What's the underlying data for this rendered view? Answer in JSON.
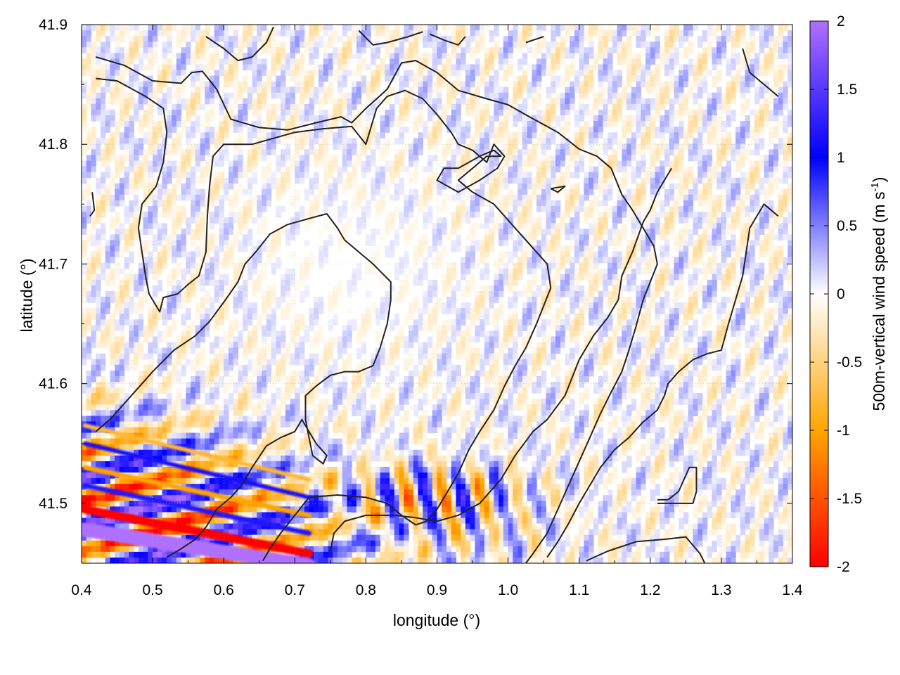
{
  "chart_data": {
    "type": "heatmap",
    "xlabel": "longitude (°)",
    "ylabel": "latitude (°)",
    "colorbar_label": "500m-vertical wind speed (m s",
    "colorbar_label_sup": "-1",
    "colorbar_label_end": ")",
    "xlim": [
      0.4,
      1.4
    ],
    "ylim": [
      41.45,
      41.9
    ],
    "x_ticks": [
      0.4,
      0.5,
      0.6,
      0.7,
      0.8,
      0.9,
      1.0,
      1.1,
      1.2,
      1.3,
      1.4
    ],
    "x_tick_labels": [
      "0.4",
      "0.5",
      "0.6",
      "0.7",
      "0.8",
      "0.9",
      "1.0",
      "1.1",
      "1.2",
      "1.3",
      "1.4"
    ],
    "y_ticks": [
      41.5,
      41.6,
      41.7,
      41.8,
      41.9
    ],
    "y_tick_labels": [
      "41.5",
      "41.6",
      "41.7",
      "41.8",
      "41.9"
    ],
    "grid": true,
    "colorbar_range": [
      -2,
      2
    ],
    "colorbar_ticks": [
      2,
      1.5,
      1,
      0.5,
      0,
      -0.5,
      -1,
      -1.5,
      -2
    ],
    "colorbar_tick_labels": [
      "2",
      "1.5",
      "1",
      "0.5",
      "0",
      "-0.5",
      "-1",
      "-1.5",
      "-2"
    ],
    "colormap": [
      {
        "value": -2.0,
        "color": "#ff0000"
      },
      {
        "value": -1.0,
        "color": "#ffa500"
      },
      {
        "value": 0.0,
        "color": "#ffffff"
      },
      {
        "value": 1.0,
        "color": "#0000ff"
      },
      {
        "value": 2.0,
        "color": "#b070ff"
      }
    ],
    "contour_color": "#222222",
    "contours": [
      [
        [
          0.42,
          41.873
        ],
        [
          0.46,
          41.866
        ],
        [
          0.5,
          41.853
        ],
        [
          0.54,
          41.851
        ],
        [
          0.555,
          41.86
        ],
        [
          0.57,
          41.861
        ],
        [
          0.59,
          41.846
        ],
        [
          0.61,
          41.821
        ],
        [
          0.65,
          41.814
        ],
        [
          0.69,
          41.812
        ],
        [
          0.73,
          41.818
        ],
        [
          0.765,
          41.823
        ],
        [
          0.78,
          41.818
        ],
        [
          0.8,
          41.83
        ],
        [
          0.83,
          41.846
        ],
        [
          0.85,
          41.868
        ],
        [
          0.87,
          41.87
        ],
        [
          0.9,
          41.86
        ],
        [
          0.93,
          41.845
        ],
        [
          0.97,
          41.838
        ],
        [
          1.0,
          41.833
        ],
        [
          1.03,
          41.823
        ],
        [
          1.07,
          41.81
        ],
        [
          1.1,
          41.796
        ],
        [
          1.125,
          41.79
        ],
        [
          1.145,
          41.78
        ],
        [
          1.16,
          41.758
        ],
        [
          1.175,
          41.745
        ],
        [
          1.19,
          41.73
        ],
        [
          1.205,
          41.715
        ],
        [
          1.21,
          41.7
        ],
        [
          1.2,
          41.685
        ],
        [
          1.19,
          41.67
        ],
        [
          1.18,
          41.648
        ],
        [
          1.17,
          41.628
        ],
        [
          1.16,
          41.61
        ],
        [
          1.145,
          41.593
        ],
        [
          1.13,
          41.575
        ],
        [
          1.115,
          41.555
        ],
        [
          1.1,
          41.535
        ],
        [
          1.085,
          41.515
        ],
        [
          1.07,
          41.495
        ],
        [
          1.055,
          41.475
        ],
        [
          1.035,
          41.458
        ],
        [
          1.02,
          41.446
        ]
      ],
      [
        [
          0.42,
          41.855
        ],
        [
          0.45,
          41.853
        ],
        [
          0.49,
          41.84
        ],
        [
          0.515,
          41.83
        ],
        [
          0.52,
          41.81
        ],
        [
          0.515,
          41.785
        ],
        [
          0.505,
          41.765
        ],
        [
          0.485,
          41.75
        ],
        [
          0.48,
          41.73
        ],
        [
          0.485,
          41.71
        ],
        [
          0.49,
          41.69
        ],
        [
          0.495,
          41.675
        ],
        [
          0.51,
          41.66
        ],
        [
          0.515,
          41.672
        ],
        [
          0.535,
          41.675
        ],
        [
          0.55,
          41.683
        ],
        [
          0.565,
          41.69
        ],
        [
          0.575,
          41.71
        ],
        [
          0.577,
          41.74
        ],
        [
          0.58,
          41.765
        ],
        [
          0.585,
          41.79
        ],
        [
          0.6,
          41.8
        ],
        [
          0.62,
          41.8
        ],
        [
          0.64,
          41.8
        ],
        [
          0.67,
          41.805
        ],
        [
          0.7,
          41.81
        ],
        [
          0.74,
          41.813
        ],
        [
          0.78,
          41.815
        ],
        [
          0.8,
          41.8
        ],
        [
          0.815,
          41.83
        ],
        [
          0.83,
          41.84
        ],
        [
          0.855,
          41.845
        ],
        [
          0.88,
          41.838
        ],
        [
          0.9,
          41.825
        ],
        [
          0.92,
          41.81
        ],
        [
          0.93,
          41.8
        ],
        [
          0.95,
          41.795
        ],
        [
          0.97,
          41.785
        ],
        [
          0.98,
          41.8
        ],
        [
          0.995,
          41.79
        ],
        [
          0.985,
          41.78
        ],
        [
          0.96,
          41.77
        ],
        [
          0.93,
          41.76
        ],
        [
          0.9,
          41.77
        ],
        [
          0.91,
          41.78
        ],
        [
          0.93,
          41.78
        ],
        [
          0.96,
          41.79
        ],
        [
          0.98,
          41.795
        ],
        [
          0.99,
          41.79
        ],
        [
          0.97,
          41.79
        ],
        [
          0.95,
          41.78
        ],
        [
          0.93,
          41.77
        ],
        [
          0.95,
          41.76
        ],
        [
          0.98,
          41.75
        ],
        [
          1.01,
          41.73
        ],
        [
          1.04,
          41.71
        ],
        [
          1.055,
          41.7
        ],
        [
          1.06,
          41.68
        ],
        [
          1.05,
          41.665
        ],
        [
          1.04,
          41.65
        ],
        [
          1.025,
          41.63
        ],
        [
          1.01,
          41.615
        ],
        [
          0.995,
          41.598
        ],
        [
          0.98,
          41.578
        ],
        [
          0.96,
          41.56
        ],
        [
          0.945,
          41.545
        ],
        [
          0.93,
          41.525
        ],
        [
          0.915,
          41.51
        ],
        [
          0.9,
          41.495
        ],
        [
          0.885,
          41.485
        ],
        [
          0.87,
          41.482
        ],
        [
          0.85,
          41.49
        ],
        [
          0.83,
          41.5
        ],
        [
          0.8,
          41.505
        ],
        [
          0.76,
          41.507
        ],
        [
          0.72,
          41.505
        ],
        [
          0.7,
          41.49
        ],
        [
          0.68,
          41.475
        ],
        [
          0.665,
          41.462
        ],
        [
          0.655,
          41.452
        ]
      ],
      [
        [
          0.42,
          41.56
        ],
        [
          0.44,
          41.57
        ],
        [
          0.47,
          41.59
        ],
        [
          0.5,
          41.61
        ],
        [
          0.53,
          41.628
        ],
        [
          0.56,
          41.64
        ],
        [
          0.58,
          41.652
        ],
        [
          0.6,
          41.668
        ],
        [
          0.62,
          41.685
        ],
        [
          0.63,
          41.7
        ],
        [
          0.645,
          41.71
        ],
        [
          0.665,
          41.725
        ],
        [
          0.69,
          41.733
        ],
        [
          0.72,
          41.738
        ],
        [
          0.745,
          41.742
        ],
        [
          0.76,
          41.73
        ],
        [
          0.77,
          41.72
        ],
        [
          0.79,
          41.71
        ],
        [
          0.81,
          41.7
        ],
        [
          0.835,
          41.685
        ],
        [
          0.835,
          41.67
        ],
        [
          0.83,
          41.65
        ],
        [
          0.82,
          41.63
        ],
        [
          0.81,
          41.615
        ],
        [
          0.79,
          41.61
        ],
        [
          0.77,
          41.61
        ],
        [
          0.75,
          41.607
        ],
        [
          0.73,
          41.598
        ],
        [
          0.715,
          41.59
        ],
        [
          0.715,
          41.57
        ],
        [
          0.72,
          41.555
        ],
        [
          0.725,
          41.54
        ],
        [
          0.74,
          41.533
        ],
        [
          0.745,
          41.54
        ],
        [
          0.73,
          41.55
        ],
        [
          0.72,
          41.56
        ],
        [
          0.71,
          41.57
        ],
        [
          0.7,
          41.56
        ],
        [
          0.68,
          41.555
        ],
        [
          0.66,
          41.548
        ],
        [
          0.64,
          41.53
        ],
        [
          0.625,
          41.515
        ],
        [
          0.61,
          41.505
        ],
        [
          0.59,
          41.495
        ],
        [
          0.575,
          41.48
        ],
        [
          0.56,
          41.47
        ],
        [
          0.54,
          41.462
        ],
        [
          0.52,
          41.455
        ]
      ],
      [
        [
          0.75,
          41.46
        ],
        [
          0.755,
          41.475
        ],
        [
          0.77,
          41.485
        ],
        [
          0.8,
          41.49
        ],
        [
          0.84,
          41.49
        ],
        [
          0.87,
          41.488
        ],
        [
          0.9,
          41.485
        ],
        [
          0.93,
          41.49
        ],
        [
          0.96,
          41.5
        ],
        [
          0.99,
          41.52
        ],
        [
          1.01,
          41.54
        ],
        [
          1.035,
          41.56
        ],
        [
          1.055,
          41.57
        ],
        [
          1.08,
          41.59
        ],
        [
          1.1,
          41.62
        ],
        [
          1.12,
          41.64
        ],
        [
          1.14,
          41.655
        ],
        [
          1.155,
          41.67
        ],
        [
          1.16,
          41.69
        ],
        [
          1.175,
          41.71
        ],
        [
          1.19,
          41.735
        ],
        [
          1.2,
          41.745
        ],
        [
          1.21,
          41.76
        ],
        [
          1.22,
          41.77
        ],
        [
          1.23,
          41.78
        ]
      ],
      [
        [
          1.11,
          41.452
        ],
        [
          1.14,
          41.46
        ],
        [
          1.18,
          41.468
        ],
        [
          1.22,
          41.47
        ],
        [
          1.25,
          41.472
        ],
        [
          1.27,
          41.458
        ],
        [
          1.28,
          41.446
        ]
      ],
      [
        [
          1.21,
          41.5
        ],
        [
          1.24,
          41.5
        ],
        [
          1.26,
          41.5
        ],
        [
          1.265,
          41.51
        ],
        [
          1.265,
          41.53
        ],
        [
          1.255,
          41.53
        ],
        [
          1.24,
          41.51
        ],
        [
          1.225,
          41.503
        ],
        [
          1.21,
          41.503
        ]
      ],
      [
        [
          1.33,
          41.88
        ],
        [
          1.34,
          41.86
        ],
        [
          1.36,
          41.85
        ],
        [
          1.38,
          41.84
        ]
      ],
      [
        [
          1.38,
          41.74
        ],
        [
          1.36,
          41.75
        ],
        [
          1.34,
          41.73
        ],
        [
          1.335,
          41.71
        ],
        [
          1.33,
          41.69
        ],
        [
          1.32,
          41.67
        ],
        [
          1.31,
          41.65
        ],
        [
          1.3,
          41.628
        ],
        [
          1.28,
          41.625
        ],
        [
          1.26,
          41.62
        ],
        [
          1.24,
          41.61
        ],
        [
          1.225,
          41.6
        ],
        [
          1.22,
          41.59
        ],
        [
          1.21,
          41.578
        ],
        [
          1.19,
          41.568
        ],
        [
          1.17,
          41.555
        ],
        [
          1.15,
          41.545
        ],
        [
          1.13,
          41.53
        ],
        [
          1.115,
          41.515
        ],
        [
          1.1,
          41.5
        ],
        [
          1.085,
          41.483
        ],
        [
          1.07,
          41.468
        ],
        [
          1.055,
          41.455
        ]
      ],
      [
        [
          0.575,
          41.89
        ],
        [
          0.6,
          41.88
        ],
        [
          0.62,
          41.87
        ],
        [
          0.64,
          41.873
        ],
        [
          0.66,
          41.885
        ],
        [
          0.67,
          41.898
        ]
      ],
      [
        [
          0.79,
          41.895
        ],
        [
          0.81,
          41.883
        ],
        [
          0.83,
          41.885
        ],
        [
          0.86,
          41.89
        ],
        [
          0.88,
          41.894
        ]
      ],
      [
        [
          0.89,
          41.892
        ],
        [
          0.91,
          41.887
        ],
        [
          0.93,
          41.883
        ],
        [
          0.94,
          41.89
        ]
      ],
      [
        [
          1.025,
          41.885
        ],
        [
          1.05,
          41.89
        ]
      ],
      [
        [
          0.415,
          41.76
        ],
        [
          0.418,
          41.745
        ],
        [
          0.412,
          41.74
        ]
      ],
      [
        [
          1.06,
          41.763
        ],
        [
          1.08,
          41.765
        ],
        [
          1.07,
          41.76
        ],
        [
          1.06,
          41.763
        ]
      ]
    ]
  }
}
